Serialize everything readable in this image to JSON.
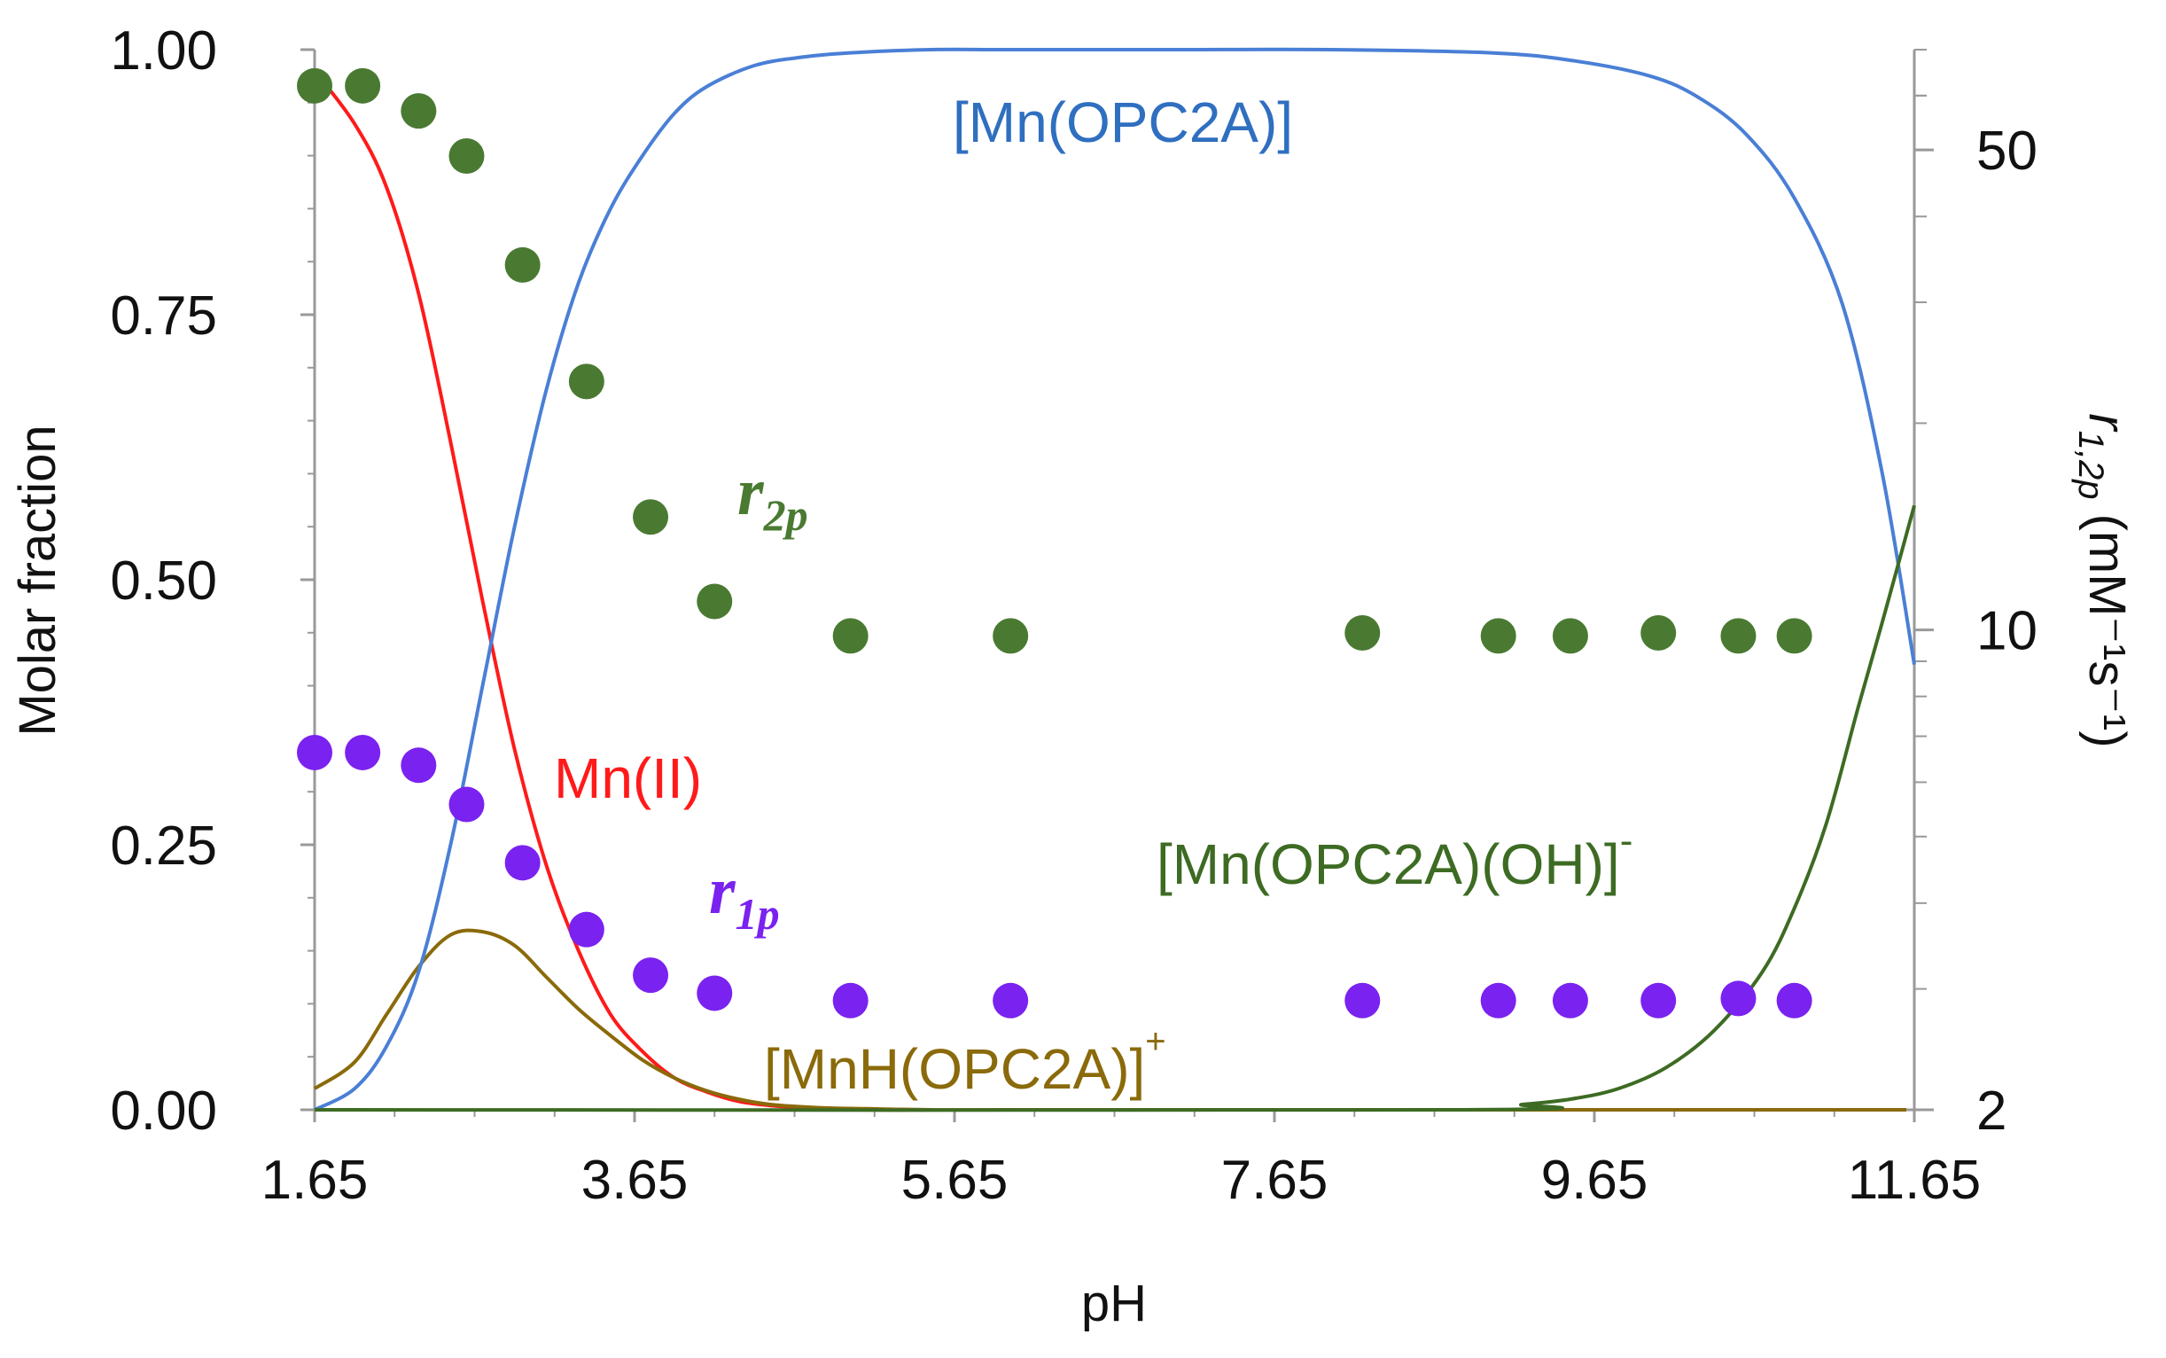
{
  "chart_data": {
    "type": "line",
    "title": "",
    "xlabel": "pH",
    "ylabel": "Molar fraction",
    "y2label": {
      "symbol": "r",
      "subscript": "1,2p",
      "units": " (mM⁻¹s⁻¹)"
    },
    "xlim": [
      1.65,
      11.65
    ],
    "ylim": [
      0,
      1
    ],
    "y2lim": [
      2,
      70
    ],
    "y2scale": "log",
    "x_ticks": [
      "1.65",
      "3.65",
      "5.65",
      "7.65",
      "9.65",
      "11.65"
    ],
    "y_ticks": [
      "0.00",
      "0.25",
      "0.50",
      "0.75",
      "1.00"
    ],
    "y2_ticks": [
      "2",
      "10",
      "50"
    ],
    "series": [
      {
        "name": "Mn(II)",
        "label_text": "Mn(II)",
        "color": "#ff1a1a",
        "x": [
          1.65,
          1.9,
          2.1,
          2.3,
          2.5,
          2.7,
          2.9,
          3.1,
          3.3,
          3.5,
          3.7,
          3.9,
          4.1,
          4.3,
          4.5,
          4.7,
          4.9,
          5.2,
          5.5
        ],
        "values": [
          0.98,
          0.93,
          0.87,
          0.77,
          0.63,
          0.48,
          0.34,
          0.23,
          0.15,
          0.09,
          0.055,
          0.03,
          0.017,
          0.008,
          0.004,
          0.002,
          0.001,
          0.0,
          0.0
        ]
      },
      {
        "name": "[MnH(OPC2A)]+",
        "label_text": "[MnH(OPC2A)]",
        "label_sup": "+",
        "color": "#8a6a0a",
        "x": [
          1.65,
          1.9,
          2.1,
          2.3,
          2.5,
          2.7,
          2.9,
          3.1,
          3.3,
          3.5,
          3.7,
          3.9,
          4.1,
          4.3,
          4.5,
          4.8,
          5.1,
          5.5,
          6.0,
          11.6
        ],
        "values": [
          0.02,
          0.045,
          0.09,
          0.135,
          0.165,
          0.168,
          0.155,
          0.125,
          0.095,
          0.07,
          0.047,
          0.03,
          0.018,
          0.01,
          0.005,
          0.002,
          0.001,
          0.0,
          0.0,
          0.0
        ]
      },
      {
        "name": "[Mn(OPC2A)]",
        "label_text": "[Mn(OPC2A)]",
        "color": "#4a7fd6",
        "x": [
          1.65,
          1.9,
          2.1,
          2.3,
          2.5,
          2.7,
          2.9,
          3.1,
          3.3,
          3.5,
          3.7,
          3.9,
          4.1,
          4.4,
          4.7,
          5.0,
          5.5,
          6.0,
          7.0,
          8.0,
          9.0,
          9.5,
          10.0,
          10.3,
          10.6,
          10.9,
          11.2,
          11.45,
          11.65
        ],
        "values": [
          0.0,
          0.02,
          0.06,
          0.13,
          0.25,
          0.4,
          0.55,
          0.68,
          0.78,
          0.85,
          0.9,
          0.94,
          0.965,
          0.985,
          0.993,
          0.997,
          1.0,
          1.0,
          1.0,
          1.0,
          0.997,
          0.99,
          0.975,
          0.955,
          0.92,
          0.86,
          0.76,
          0.6,
          0.42
        ]
      },
      {
        "name": "[Mn(OPC2A)(OH)]-",
        "label_text": "[Mn(OPC2A)(OH)]",
        "label_sup": "-",
        "color": "#3d6b23",
        "x": [
          1.65,
          8.8,
          9.2,
          9.5,
          9.8,
          10.1,
          10.4,
          10.7,
          10.9,
          11.1,
          11.3,
          11.45,
          11.65
        ],
        "values": [
          0.0,
          0.0,
          0.005,
          0.01,
          0.02,
          0.04,
          0.075,
          0.13,
          0.19,
          0.27,
          0.38,
          0.46,
          0.57
        ]
      }
    ],
    "scatter": [
      {
        "name": "r2p",
        "symbol": "r",
        "subscript": "2p",
        "axis": "right",
        "color": "#4a7a32",
        "x": [
          1.65,
          1.95,
          2.3,
          2.6,
          2.95,
          3.35,
          3.75,
          4.15,
          5.0,
          6.0,
          8.2,
          9.05,
          9.5,
          10.05,
          10.55,
          10.9
        ],
        "values": [
          62,
          62,
          57,
          49,
          34,
          23,
          14.6,
          11.0,
          9.8,
          9.8,
          9.9,
          9.8,
          9.8,
          9.9,
          9.8,
          9.8
        ]
      },
      {
        "name": "r1p",
        "symbol": "r",
        "subscript": "1p",
        "axis": "left",
        "color": "#7a22f0",
        "x": [
          1.65,
          1.95,
          2.3,
          2.6,
          2.95,
          3.35,
          3.75,
          4.15,
          5.0,
          6.0,
          8.2,
          9.05,
          9.5,
          10.05,
          10.55,
          10.9
        ],
        "values": [
          0.337,
          0.337,
          0.325,
          0.288,
          0.233,
          0.17,
          0.127,
          0.11,
          0.103,
          0.103,
          0.103,
          0.103,
          0.103,
          0.103,
          0.105,
          0.103
        ]
      }
    ]
  }
}
